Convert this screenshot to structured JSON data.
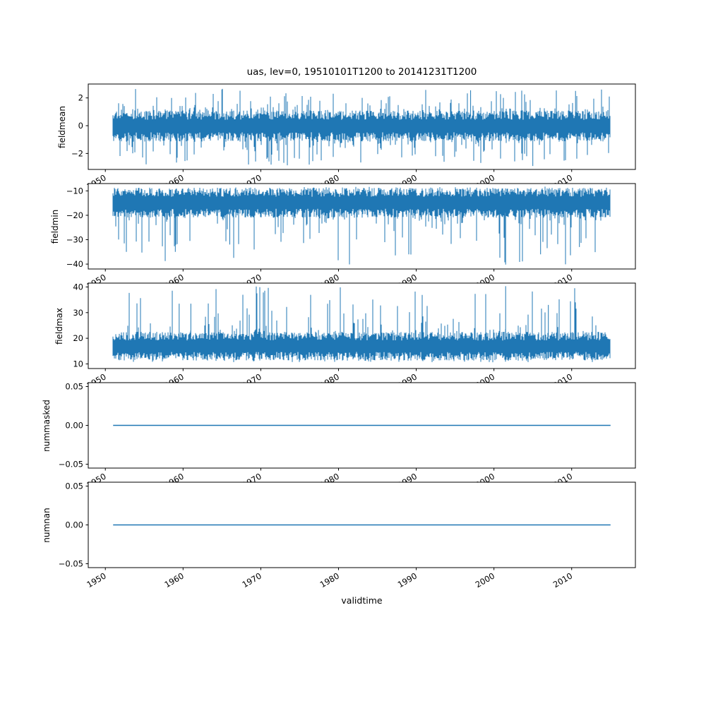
{
  "figure": {
    "title": "uas, lev=0, 19510101T1200 to 20141231T1200",
    "xlabel": "validtime",
    "line_color": "#1f77b4",
    "background": "#ffffff",
    "xticklabels": [
      "1950",
      "1960",
      "1970",
      "1980",
      "1990",
      "2000",
      "2010"
    ]
  },
  "chart_data": [
    {
      "name": "fieldmean",
      "type": "line",
      "ylabel": "fieldmean",
      "yticks": [
        -2,
        0,
        2
      ],
      "yticklabels": [
        "−2",
        "0",
        "2"
      ],
      "ylim": [
        -3.15,
        3.0
      ],
      "xlim": [
        1947.8,
        2018.2
      ],
      "xticks": [
        1950,
        1960,
        1970,
        1980,
        1990,
        2000,
        2010
      ],
      "xticklabels": [
        "1950",
        "1960",
        "1970",
        "1980",
        "1990",
        "2000",
        "2010"
      ],
      "data_x_range": [
        1951,
        2015
      ],
      "series": {
        "kind": "noise",
        "description": "dense daily noise centered on 0",
        "core": [
          -1.15,
          1.1
        ],
        "extent": [
          -2.9,
          2.65
        ],
        "spike_p": 0.3,
        "seed": 11,
        "peaks": [
          {
            "x": 1965,
            "v": 2.6
          },
          {
            "x": 1997,
            "v": 2.55
          },
          {
            "x": 2005,
            "v": -2.9
          },
          {
            "x": 2010.5,
            "v": 2.5
          }
        ]
      }
    },
    {
      "name": "fieldmin",
      "type": "line",
      "ylabel": "fieldmin",
      "yticks": [
        -40,
        -30,
        -20,
        -10
      ],
      "yticklabels": [
        "−40",
        "−30",
        "−20",
        "−10"
      ],
      "ylim": [
        -42.0,
        -7.0
      ],
      "xlim": [
        1947.8,
        2018.2
      ],
      "xticks": [
        1950,
        1960,
        1970,
        1980,
        1990,
        2000,
        2010
      ],
      "xticklabels": [
        "1950",
        "1960",
        "1970",
        "1980",
        "1990",
        "2000",
        "2010"
      ],
      "data_x_range": [
        1951,
        2015
      ],
      "series": {
        "kind": "noise",
        "description": "dense band near -10 to -22 with downward spikes",
        "core": [
          -21.0,
          -8.7
        ],
        "extent": [
          -40.2,
          -8.2
        ],
        "spike_p": 0.25,
        "seed": 22,
        "peaks": [
          {
            "x": 1959,
            "v": -35.0
          },
          {
            "x": 1966,
            "v": -32.0
          },
          {
            "x": 2001.5,
            "v": -40.2
          },
          {
            "x": 2006,
            "v": -36.0
          },
          {
            "x": 2011,
            "v": -33.0
          }
        ]
      }
    },
    {
      "name": "fieldmax",
      "type": "line",
      "ylabel": "fieldmax",
      "yticks": [
        10,
        20,
        30,
        40
      ],
      "yticklabels": [
        "10",
        "20",
        "30",
        "40"
      ],
      "ylim": [
        8.2,
        41.5
      ],
      "xlim": [
        1947.8,
        2018.2
      ],
      "xticks": [
        1950,
        1960,
        1970,
        1980,
        1990,
        2000,
        2010
      ],
      "xticklabels": [
        "1950",
        "1960",
        "1970",
        "1980",
        "1990",
        "2000",
        "2010"
      ],
      "data_x_range": [
        1951,
        2015
      ],
      "series": {
        "kind": "noise",
        "description": "dense band near 11 to 23 with upward spikes",
        "core": [
          11.3,
          22.5
        ],
        "extent": [
          10.6,
          40.3
        ],
        "spike_p": 0.25,
        "seed": 33,
        "peaks": [
          {
            "x": 1959.5,
            "v": 33.5
          },
          {
            "x": 1961,
            "v": 33.5
          },
          {
            "x": 1969.5,
            "v": 37.5
          },
          {
            "x": 2001.5,
            "v": 40.3
          },
          {
            "x": 2007,
            "v": 33.0
          }
        ]
      }
    },
    {
      "name": "nummasked",
      "type": "line",
      "ylabel": "nummasked",
      "yticks": [
        -0.05,
        0.0,
        0.05
      ],
      "yticklabels": [
        "−0.05",
        "0.00",
        "0.05"
      ],
      "ylim": [
        -0.055,
        0.055
      ],
      "xlim": [
        1947.8,
        2018.2
      ],
      "xticks": [
        1950,
        1960,
        1970,
        1980,
        1990,
        2000,
        2010
      ],
      "xticklabels": [
        "1950",
        "1960",
        "1970",
        "1980",
        "1990",
        "2000",
        "2010"
      ],
      "data_x_range": [
        1951,
        2015
      ],
      "series": {
        "kind": "constant",
        "description": "flat line, all values zero",
        "value": 0.0
      }
    },
    {
      "name": "numnan",
      "type": "line",
      "ylabel": "numnan",
      "yticks": [
        -0.05,
        0.0,
        0.05
      ],
      "yticklabels": [
        "−0.05",
        "0.00",
        "0.05"
      ],
      "ylim": [
        -0.055,
        0.055
      ],
      "xlim": [
        1947.8,
        2018.2
      ],
      "xticks": [
        1950,
        1960,
        1970,
        1980,
        1990,
        2000,
        2010
      ],
      "xticklabels": [
        "1950",
        "1960",
        "1970",
        "1980",
        "1990",
        "2000",
        "2010"
      ],
      "data_x_range": [
        1951,
        2015
      ],
      "series": {
        "kind": "constant",
        "description": "flat line, all values zero",
        "value": 0.0
      }
    }
  ]
}
